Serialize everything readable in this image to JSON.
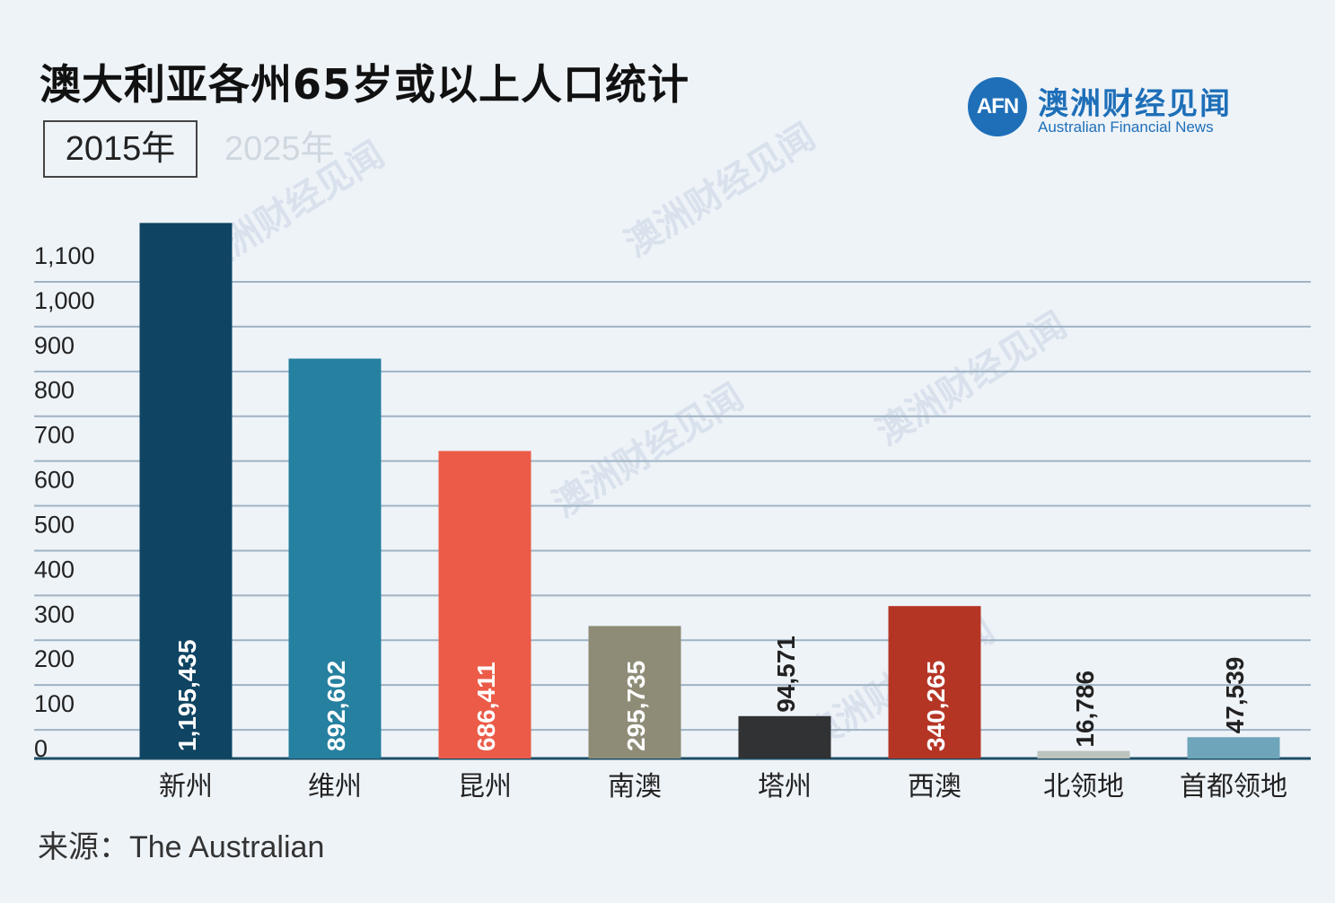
{
  "title": "澳大利亚各州65岁或以上人口统计",
  "tabs": [
    {
      "label": "2015年",
      "active": true
    },
    {
      "label": "2025年",
      "active": false
    }
  ],
  "logo": {
    "mark": "AFN",
    "name_cn": "澳洲财经见闻",
    "name_en": "Australian Financial News"
  },
  "source": {
    "prefix": "来源：",
    "name": "The Australian"
  },
  "chart_data": {
    "type": "bar",
    "categories": [
      "新州",
      "维州",
      "昆州",
      "南澳",
      "塔州",
      "西澳",
      "北领地",
      "首都领地"
    ],
    "values": [
      1195435,
      892602,
      686411,
      295735,
      94571,
      340265,
      16786,
      47539
    ],
    "value_labels": [
      "1,195,435",
      "892,602",
      "686,411",
      "295,735",
      "94,571",
      "340,265",
      "16,786",
      "47,539"
    ],
    "colors": [
      "#0f4462",
      "#26809f",
      "#eb5b48",
      "#8e8c76",
      "#303233",
      "#b53525",
      "#bdc3bf",
      "#6ea5ba"
    ],
    "yticks": [
      0,
      100,
      200,
      300,
      400,
      500,
      600,
      700,
      800,
      900,
      1000,
      1100
    ],
    "ytick_labels": [
      "0",
      "100",
      "200",
      "300",
      "400",
      "500",
      "600",
      "700",
      "800",
      "900",
      "1,000",
      "1,100"
    ],
    "ylim": [
      0,
      1100
    ],
    "unit_scale": 1000,
    "grid": true,
    "label_inside": [
      true,
      true,
      true,
      true,
      false,
      true,
      false,
      false
    ]
  }
}
